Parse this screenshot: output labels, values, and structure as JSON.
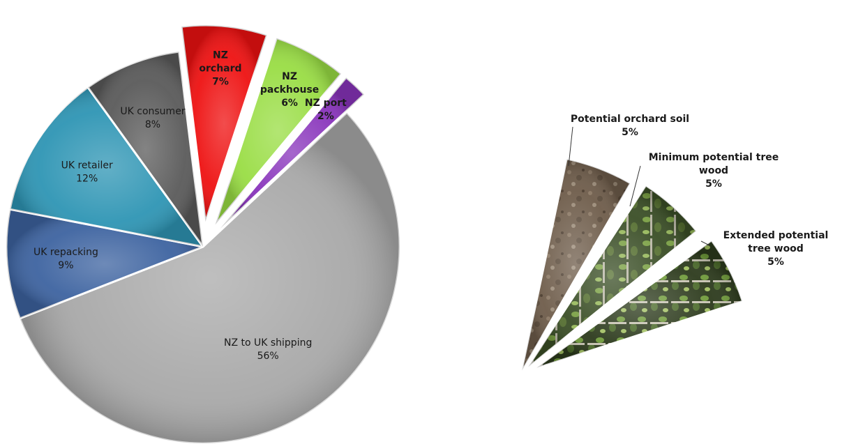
{
  "chart_data": [
    {
      "type": "pie",
      "categories": [
        "NZ orchard",
        "NZ packhouse",
        "NZ port",
        "NZ to UK shipping",
        "UK repacking",
        "UK retailer",
        "UK consumer"
      ],
      "values": [
        7,
        6,
        2,
        56,
        9,
        12,
        8
      ],
      "value_labels": [
        "7%",
        "6%",
        "2%",
        "56%",
        "9%",
        "12%",
        "8%"
      ],
      "exploded": [
        "NZ orchard",
        "NZ packhouse",
        "NZ port"
      ],
      "colors": [
        "#ee1111",
        "#99dd44",
        "#8833bb",
        "#a9a9a9",
        "#3d63a0",
        "#2e95b4",
        "#5a5a5a"
      ],
      "title": ""
    },
    {
      "type": "pie",
      "categories": [
        "Potential orchard soil",
        "Minimum potential tree wood",
        "Extended potential tree wood"
      ],
      "values": [
        5,
        5,
        5
      ],
      "value_labels": [
        "5%",
        "5%",
        "5%"
      ],
      "fill": "photo texture (soil / tree wood)",
      "title": ""
    }
  ]
}
